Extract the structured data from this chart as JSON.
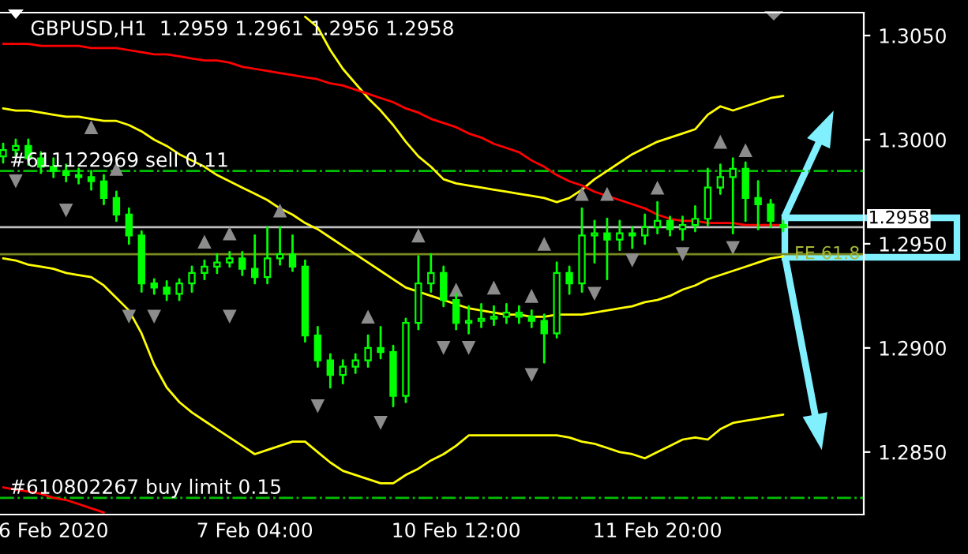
{
  "chart_data": {
    "type": "candlestick",
    "title": "GBPUSD,H1  1.2959 1.2961 1.2956 1.2958",
    "color": "#00ff00",
    "categories": [
      null,
      null,
      null,
      null,
      "6 Feb 2020",
      null,
      null,
      null,
      null,
      null,
      null,
      null,
      null,
      null,
      null,
      null,
      null,
      null,
      null,
      null,
      "7 Feb 04:00",
      null,
      null,
      null,
      null,
      null,
      null,
      null,
      null,
      null,
      null,
      null,
      null,
      null,
      null,
      null,
      "10 Feb 12:00",
      null,
      null,
      null,
      null,
      null,
      null,
      null,
      null,
      null,
      null,
      null,
      null,
      null,
      null,
      null,
      "11 Feb 20:00",
      null,
      null,
      null,
      null,
      null,
      null,
      null,
      null,
      null,
      null
    ],
    "ohlc": [
      [
        1.2992,
        1.2998,
        1.2989,
        1.2995
      ],
      [
        1.2995,
        1.3,
        1.2992,
        1.2997
      ],
      [
        1.2997,
        1.3,
        1.2988,
        1.2991
      ],
      [
        1.2991,
        1.2994,
        1.2984,
        1.2987
      ],
      [
        1.2987,
        1.2991,
        1.2982,
        1.2985
      ],
      [
        1.2985,
        1.2988,
        1.298,
        1.2983
      ],
      [
        1.2983,
        1.2986,
        1.2979,
        1.2982
      ],
      [
        1.2982,
        1.2985,
        1.2976,
        1.298
      ],
      [
        1.298,
        1.2983,
        1.2969,
        1.2972
      ],
      [
        1.2972,
        1.2975,
        1.2961,
        1.2964
      ],
      [
        1.2964,
        1.2967,
        1.295,
        1.2954
      ],
      [
        1.2954,
        1.2956,
        1.2927,
        1.2931
      ],
      [
        1.2931,
        1.2933,
        1.2926,
        1.2929
      ],
      [
        1.2929,
        1.2932,
        1.2923,
        1.2926
      ],
      [
        1.2926,
        1.2933,
        1.2923,
        1.2931
      ],
      [
        1.2931,
        1.2939,
        1.2927,
        1.2936
      ],
      [
        1.2936,
        1.2942,
        1.2933,
        1.2939
      ],
      [
        1.2939,
        1.2945,
        1.2936,
        1.2941
      ],
      [
        1.2941,
        1.2946,
        1.2939,
        1.2943
      ],
      [
        1.2943,
        1.2946,
        1.2935,
        1.2938
      ],
      [
        1.2938,
        1.2954,
        1.2931,
        1.2934
      ],
      [
        1.2934,
        1.2958,
        1.2931,
        1.2943
      ],
      [
        1.2943,
        1.2958,
        1.294,
        1.2945
      ],
      [
        1.2945,
        1.2954,
        1.2937,
        1.2939
      ],
      [
        1.2939,
        1.2942,
        1.2903,
        1.2906
      ],
      [
        1.2906,
        1.291,
        1.2891,
        1.2894
      ],
      [
        1.2894,
        1.2897,
        1.2881,
        1.2887
      ],
      [
        1.2887,
        1.2894,
        1.2883,
        1.2891
      ],
      [
        1.2891,
        1.2897,
        1.2888,
        1.2894
      ],
      [
        1.2894,
        1.2906,
        1.2891,
        1.29
      ],
      [
        1.29,
        1.291,
        1.2895,
        1.2898
      ],
      [
        1.2898,
        1.2901,
        1.2872,
        1.2877
      ],
      [
        1.2877,
        1.2914,
        1.2874,
        1.2912
      ],
      [
        1.2912,
        1.2944,
        1.2909,
        1.2931
      ],
      [
        1.2931,
        1.2945,
        1.2927,
        1.2936
      ],
      [
        1.2936,
        1.2939,
        1.292,
        1.2923
      ],
      [
        1.2923,
        1.2926,
        1.2909,
        1.2912
      ],
      [
        1.2912,
        1.292,
        1.2907,
        1.2913
      ],
      [
        1.2913,
        1.2921,
        1.291,
        1.2914
      ],
      [
        1.2914,
        1.292,
        1.2911,
        1.2915
      ],
      [
        1.2915,
        1.2921,
        1.2912,
        1.2917
      ],
      [
        1.2917,
        1.292,
        1.2912,
        1.2915
      ],
      [
        1.2915,
        1.2918,
        1.291,
        1.2913
      ],
      [
        1.2913,
        1.2916,
        1.2893,
        1.2907
      ],
      [
        1.2907,
        1.2941,
        1.2905,
        1.2936
      ],
      [
        1.2936,
        1.2939,
        1.2926,
        1.2931
      ],
      [
        1.2931,
        1.2967,
        1.2927,
        1.2954
      ],
      [
        1.2954,
        1.2961,
        1.2941,
        1.2955
      ],
      [
        1.2955,
        1.2962,
        1.2933,
        1.2952
      ],
      [
        1.2952,
        1.2961,
        1.2947,
        1.2955
      ],
      [
        1.2955,
        1.2958,
        1.2948,
        1.2954
      ],
      [
        1.2954,
        1.2964,
        1.295,
        1.2958
      ],
      [
        1.2958,
        1.297,
        1.2955,
        1.2961
      ],
      [
        1.2961,
        1.2963,
        1.2954,
        1.2957
      ],
      [
        1.2957,
        1.2963,
        1.2952,
        1.2959
      ],
      [
        1.2959,
        1.2968,
        1.2956,
        1.2962
      ],
      [
        1.2962,
        1.2986,
        1.2959,
        1.2977
      ],
      [
        1.2977,
        1.2988,
        1.2974,
        1.2982
      ],
      [
        1.2982,
        1.2991,
        1.2955,
        1.2986
      ],
      [
        1.2986,
        1.2989,
        1.2961,
        1.2972
      ],
      [
        1.2972,
        1.298,
        1.2957,
        1.2969
      ],
      [
        1.2969,
        1.2971,
        1.2958,
        1.2961
      ],
      [
        1.2959,
        1.2961,
        1.2956,
        1.2958
      ]
    ],
    "series": [
      {
        "type": "line",
        "color": "#ffff00",
        "values": [
          null,
          null,
          null,
          null,
          null,
          null,
          null,
          null,
          null,
          null,
          null,
          null,
          null,
          null,
          null,
          null,
          null,
          null,
          null,
          null,
          null,
          null,
          null,
          null,
          1.3059,
          1.3054,
          1.3043,
          1.3034,
          1.3027,
          1.302,
          1.3014,
          1.3007,
          1.2999,
          1.2992,
          1.2987,
          1.2981,
          1.2979,
          1.2978,
          1.2977,
          1.2976,
          1.2975,
          1.2974,
          1.2973,
          1.2972,
          1.297,
          1.2972,
          1.2976,
          1.2981,
          1.2985,
          1.2989,
          1.2993,
          1.2996,
          1.2999,
          1.3001,
          1.3003,
          1.3005,
          1.3012,
          1.3016,
          1.3014,
          1.3016,
          1.3018,
          1.302,
          1.3021
        ]
      },
      {
        "type": "line",
        "color": "#ffff00",
        "values": [
          1.3015,
          1.3014,
          1.3014,
          1.3013,
          1.3012,
          1.3011,
          1.3011,
          1.301,
          1.3009,
          1.3009,
          1.3007,
          1.3004,
          1.3,
          1.2997,
          1.2993,
          1.299,
          1.2987,
          1.2983,
          1.298,
          1.2977,
          1.2974,
          1.2971,
          1.2967,
          1.2964,
          1.296,
          1.2957,
          1.2953,
          1.2949,
          1.2945,
          1.2941,
          1.2937,
          1.2933,
          1.2929,
          1.2927,
          1.2925,
          1.2923,
          1.2921,
          1.2919,
          1.2918,
          1.2917,
          1.2916,
          1.2916,
          1.2915,
          1.2915,
          1.2916,
          1.2916,
          1.2916,
          1.2917,
          1.2918,
          1.2919,
          1.292,
          1.2922,
          1.2923,
          1.2925,
          1.2928,
          1.293,
          1.2933,
          1.2935,
          1.2937,
          1.2939,
          1.2941,
          1.2943,
          1.2944
        ]
      },
      {
        "type": "line",
        "color": "#ffff00",
        "values": [
          1.2943,
          1.2942,
          1.294,
          1.2939,
          1.2938,
          1.2936,
          1.2935,
          1.2934,
          1.293,
          1.2924,
          1.2918,
          1.2907,
          1.2892,
          1.2881,
          1.2874,
          1.2869,
          1.2865,
          1.2861,
          1.2857,
          1.2853,
          1.2849,
          1.2851,
          1.2853,
          1.2855,
          1.2855,
          1.285,
          1.2845,
          1.2841,
          1.2839,
          1.2837,
          1.2835,
          1.2835,
          1.2839,
          1.2842,
          1.2846,
          1.2849,
          1.2853,
          1.2858,
          1.2858,
          1.2858,
          1.2858,
          1.2858,
          1.2858,
          1.2858,
          1.2858,
          1.2857,
          1.2855,
          1.2854,
          1.2852,
          1.285,
          1.2849,
          1.2847,
          1.285,
          1.2853,
          1.2856,
          1.2857,
          1.2856,
          1.2861,
          1.2864,
          1.2865,
          1.2866,
          1.2867,
          1.2868
        ]
      },
      {
        "type": "line",
        "color": "#ff0000",
        "values": [
          1.3046,
          1.3046,
          1.3046,
          1.3045,
          1.3045,
          1.3045,
          1.3045,
          1.3044,
          1.3044,
          1.3044,
          1.3043,
          1.3042,
          1.3041,
          1.3041,
          1.304,
          1.3039,
          1.3038,
          1.3038,
          1.3037,
          1.3035,
          1.3034,
          1.3033,
          1.3032,
          1.3031,
          1.303,
          1.3029,
          1.3027,
          1.3026,
          1.3024,
          1.3022,
          1.302,
          1.3018,
          1.3015,
          1.3013,
          1.301,
          1.3008,
          1.3006,
          1.3003,
          1.3001,
          1.2998,
          1.2996,
          1.2994,
          1.299,
          1.2987,
          1.2983,
          1.298,
          1.2978,
          1.2975,
          1.2973,
          1.2971,
          1.2969,
          1.2967,
          1.2964,
          1.2962,
          1.2961,
          1.2961,
          1.296,
          1.296,
          1.296,
          1.2959,
          1.2959,
          1.2959,
          1.2959
        ]
      },
      {
        "type": "line",
        "color": "#ff0000",
        "values": [
          1.2833,
          1.2832,
          1.2831,
          1.283,
          1.2828,
          1.2827,
          1.2825,
          1.2823,
          1.2821,
          null,
          null,
          null,
          null,
          null,
          null,
          null,
          null,
          null,
          null,
          null,
          null,
          null,
          null,
          null,
          null,
          null,
          null,
          null,
          null,
          null,
          null,
          null,
          null,
          null,
          null,
          null,
          null,
          null,
          null,
          null,
          null,
          null,
          null,
          null,
          null,
          null,
          null,
          null,
          null,
          null,
          null,
          null,
          null,
          null,
          null,
          null,
          null,
          null,
          null,
          null,
          null,
          null,
          null
        ]
      },
      {
        "type": "scatter",
        "color": "#8c8c8c",
        "marker": "triangle",
        "values": [
          null,
          null,
          null,
          null,
          null,
          null,
          null,
          1.3006,
          null,
          1.2986,
          null,
          null,
          null,
          null,
          null,
          null,
          1.2951,
          null,
          1.2955,
          null,
          null,
          null,
          1.2966,
          null,
          null,
          null,
          null,
          null,
          null,
          1.2915,
          null,
          null,
          null,
          1.2954,
          null,
          null,
          1.2928,
          null,
          null,
          1.2929,
          null,
          null,
          1.2925,
          1.295,
          null,
          null,
          1.2974,
          null,
          1.2974,
          null,
          null,
          null,
          1.2977,
          null,
          null,
          null,
          null,
          1.2999,
          null,
          1.2995,
          null,
          null,
          null
        ]
      },
      {
        "type": "scatter",
        "color": "#8c8c8c",
        "marker": "triangle_down",
        "values": [
          null,
          1.298,
          null,
          null,
          null,
          1.2966,
          null,
          null,
          null,
          null,
          1.2915,
          null,
          1.2915,
          null,
          null,
          null,
          null,
          null,
          1.2915,
          null,
          null,
          null,
          null,
          null,
          null,
          1.2872,
          null,
          null,
          null,
          null,
          1.2864,
          null,
          null,
          null,
          null,
          1.29,
          null,
          1.29,
          null,
          null,
          null,
          null,
          1.2887,
          null,
          null,
          null,
          null,
          1.2926,
          null,
          null,
          1.2942,
          null,
          null,
          null,
          1.2945,
          null,
          null,
          null,
          1.2948,
          null,
          null,
          null,
          null
        ]
      }
    ],
    "ref_lines": [
      {
        "axis": "y",
        "value": 1.2985,
        "label": "#611122969 sell 0.11",
        "color": "#00c000",
        "line_style": "dashdot"
      },
      {
        "axis": "y",
        "value": 1.2828,
        "label": "#610802267 buy limit 0.15",
        "color": "#00c000",
        "line_style": "dashdot"
      },
      {
        "axis": "y",
        "value": 1.2958,
        "label": "1.2958",
        "color": "#c0c0c0",
        "line_style": "solid"
      },
      {
        "axis": "y",
        "value": 1.2945,
        "label": "FE 61.8",
        "color": "#7a8a20",
        "line_style": "solid"
      }
    ],
    "ylim": [
      1.282,
      1.3061
    ],
    "yticks": [
      {
        "value": 1.285,
        "label": "1.2850"
      },
      {
        "value": 1.29,
        "label": "1.2900"
      },
      {
        "value": 1.295,
        "label": "1.2950"
      },
      {
        "value": 1.3,
        "label": "1.3000"
      },
      {
        "value": 1.305,
        "label": "1.3050"
      }
    ],
    "grid": false,
    "legend": false
  }
}
